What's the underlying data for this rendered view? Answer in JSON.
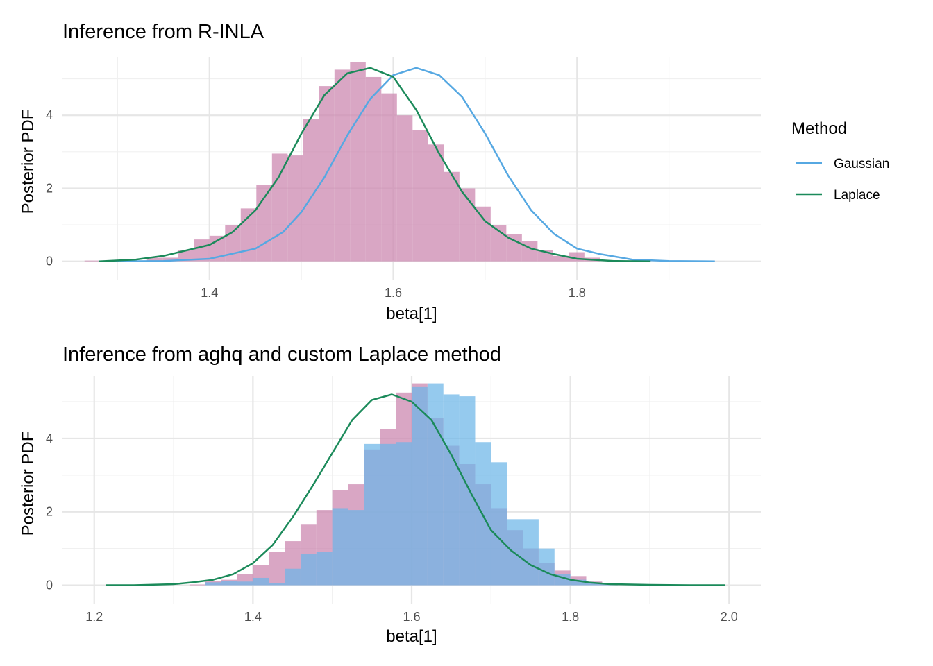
{
  "colors": {
    "gaussian": "#56a8e2",
    "laplace": "#1b8a5a",
    "hist_rinla": "#cc88b0",
    "hist_aghq": "#cc88b0",
    "hist_custom": "#6cb6e8"
  },
  "chart_data": [
    {
      "type": "bar",
      "title": "Inference from R-INLA",
      "xlabel": "beta[1]",
      "ylabel": "Posterior PDF",
      "xlim": [
        1.24,
        2.0
      ],
      "ylim": [
        -0.5,
        5.6
      ],
      "xticks": [
        1.4,
        1.6,
        1.8
      ],
      "yticks": [
        0,
        2,
        4
      ],
      "grid": true,
      "legend": {
        "title": "Method",
        "position": "right",
        "entries": [
          {
            "label": "Gaussian",
            "color_key": "gaussian"
          },
          {
            "label": "Laplace",
            "color_key": "laplace"
          }
        ]
      },
      "histograms": [
        {
          "color_key": "hist_rinla",
          "bin_width": 0.017,
          "bin_start": 1.264,
          "values": [
            0.02,
            0.02,
            0.02,
            0.02,
            0.1,
            0.1,
            0.3,
            0.6,
            0.7,
            1.0,
            1.45,
            2.1,
            2.95,
            2.9,
            3.9,
            4.8,
            5.25,
            5.45,
            5.05,
            4.6,
            4.0,
            3.6,
            3.2,
            2.45,
            2.0,
            1.5,
            1.0,
            0.75,
            0.55,
            0.3,
            0.15,
            0.25,
            0.1
          ]
        }
      ],
      "series": [
        {
          "name": "Gaussian",
          "color_key": "gaussian",
          "x": [
            1.293,
            1.35,
            1.4,
            1.45,
            1.48,
            1.5,
            1.525,
            1.55,
            1.575,
            1.6,
            1.625,
            1.65,
            1.675,
            1.7,
            1.725,
            1.75,
            1.775,
            1.8,
            1.825,
            1.86,
            1.9,
            1.95
          ],
          "y": [
            0.0,
            0.01,
            0.07,
            0.35,
            0.8,
            1.35,
            2.3,
            3.45,
            4.45,
            5.1,
            5.3,
            5.1,
            4.5,
            3.5,
            2.35,
            1.4,
            0.75,
            0.35,
            0.2,
            0.05,
            0.01,
            0.0
          ]
        },
        {
          "name": "Laplace",
          "color_key": "laplace",
          "x": [
            1.28,
            1.32,
            1.35,
            1.375,
            1.4,
            1.425,
            1.45,
            1.475,
            1.5,
            1.525,
            1.55,
            1.575,
            1.6,
            1.625,
            1.65,
            1.675,
            1.7,
            1.725,
            1.75,
            1.775,
            1.8,
            1.84,
            1.88
          ],
          "y": [
            0.0,
            0.05,
            0.15,
            0.3,
            0.45,
            0.8,
            1.4,
            2.3,
            3.5,
            4.55,
            5.15,
            5.3,
            5.05,
            4.15,
            2.95,
            1.9,
            1.1,
            0.65,
            0.35,
            0.2,
            0.07,
            0.01,
            0.0
          ]
        }
      ]
    },
    {
      "type": "bar",
      "title": "Inference from aghq and custom Laplace method",
      "xlabel": "beta[1]",
      "ylabel": "Posterior PDF",
      "xlim": [
        1.16,
        2.04
      ],
      "ylim": [
        -0.5,
        5.7
      ],
      "xticks": [
        1.2,
        1.4,
        1.6,
        1.8,
        2.0
      ],
      "yticks": [
        0,
        2,
        4
      ],
      "grid": true,
      "histograms": [
        {
          "color_key": "hist_aghq",
          "bin_width": 0.02,
          "bin_start": 1.32,
          "values": [
            0.02,
            0.12,
            0.15,
            0.3,
            0.55,
            0.9,
            1.2,
            1.65,
            2.05,
            2.6,
            2.75,
            3.7,
            4.25,
            5.25,
            5.5,
            4.55,
            3.8,
            3.3,
            2.75,
            2.1,
            1.5,
            1.0,
            0.6,
            0.4,
            0.25,
            0.1,
            0.05,
            0.02
          ]
        },
        {
          "color_key": "hist_custom",
          "bin_width": 0.02,
          "bin_start": 1.34,
          "values": [
            0.08,
            0.12,
            0.1,
            0.2,
            0.05,
            0.45,
            0.85,
            0.9,
            2.1,
            2.05,
            3.85,
            3.85,
            3.9,
            5.4,
            5.5,
            5.2,
            5.15,
            3.9,
            3.35,
            1.8,
            1.8,
            1.0,
            0.3,
            0.15,
            0.05,
            0.03
          ]
        }
      ],
      "series": [
        {
          "name": "Laplace",
          "color_key": "laplace",
          "x": [
            1.215,
            1.25,
            1.3,
            1.325,
            1.35,
            1.375,
            1.4,
            1.425,
            1.45,
            1.475,
            1.5,
            1.525,
            1.55,
            1.575,
            1.6,
            1.625,
            1.65,
            1.675,
            1.7,
            1.725,
            1.75,
            1.775,
            1.8,
            1.825,
            1.85,
            1.9,
            1.95,
            1.995
          ],
          "y": [
            0.0,
            0.0,
            0.03,
            0.08,
            0.15,
            0.3,
            0.6,
            1.1,
            1.85,
            2.7,
            3.6,
            4.5,
            5.05,
            5.2,
            5.0,
            4.5,
            3.55,
            2.5,
            1.5,
            0.95,
            0.55,
            0.3,
            0.15,
            0.07,
            0.03,
            0.01,
            0.0,
            0.0
          ]
        }
      ]
    }
  ]
}
